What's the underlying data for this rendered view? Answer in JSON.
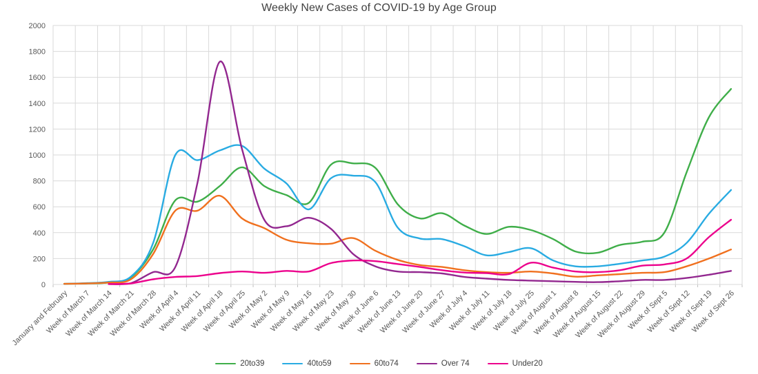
{
  "chart_data": {
    "type": "line",
    "title": "Weekly New Cases of COVID-19 by Age Group",
    "xlabel": "",
    "ylabel": "",
    "ylim": [
      0,
      2000
    ],
    "ytick_step": 200,
    "y_ticks": [
      "0",
      "200",
      "400",
      "600",
      "800",
      "1000",
      "1200",
      "1400",
      "1600",
      "1800",
      "2000"
    ],
    "grid": true,
    "smooth_lines": true,
    "legend_position": "bottom",
    "categories": [
      "January and February",
      "Week of March 7",
      "Week of March 14",
      "Week of March 21",
      "Week of March 28",
      "Week of April 4",
      "Week of April 11",
      "Week of April 18",
      "Week of April 25",
      "Week of May 2",
      "Week of May 9",
      "Week of May 16",
      "Week of May 23",
      "Week of May 30",
      "Week of June 6",
      "Week of June 13",
      "Week of June 20",
      "Week of June 27",
      "Week of July 4",
      "Week of July 11",
      "Week of July 18",
      "Week of July 25",
      "Week of August 1",
      "Week of August 8",
      "Week of August 15",
      "Week of August 22",
      "Week of August 29",
      "Week of Sept 5",
      "Week of Sept 12",
      "Week of Sept 19",
      "Week of Sept 26"
    ],
    "series": [
      {
        "name": "20to39",
        "color": "#3FAE49",
        "values": [
          5,
          8,
          15,
          55,
          270,
          650,
          640,
          760,
          905,
          760,
          690,
          630,
          925,
          935,
          900,
          620,
          510,
          550,
          455,
          390,
          445,
          420,
          350,
          255,
          245,
          305,
          330,
          400,
          865,
          1290,
          1510
        ]
      },
      {
        "name": "40to59",
        "color": "#29ABE2",
        "values": [
          5,
          10,
          20,
          60,
          320,
          1000,
          960,
          1035,
          1070,
          895,
          780,
          580,
          820,
          840,
          790,
          440,
          355,
          350,
          295,
          225,
          250,
          280,
          185,
          140,
          140,
          160,
          185,
          215,
          320,
          545,
          730
        ]
      },
      {
        "name": "60to74",
        "color": "#F0701E",
        "values": [
          5,
          8,
          15,
          40,
          235,
          570,
          570,
          685,
          510,
          435,
          345,
          318,
          315,
          358,
          260,
          190,
          150,
          135,
          110,
          95,
          90,
          100,
          85,
          60,
          70,
          80,
          90,
          95,
          140,
          200,
          270
        ]
      },
      {
        "name": "Over 74",
        "color": "#92278F",
        "values": [
          null,
          null,
          3,
          10,
          95,
          135,
          790,
          1720,
          1045,
          500,
          450,
          515,
          430,
          235,
          140,
          100,
          95,
          85,
          58,
          45,
          35,
          30,
          25,
          20,
          18,
          25,
          35,
          35,
          50,
          75,
          105
        ]
      },
      {
        "name": "Under20",
        "color": "#EC008C",
        "values": [
          null,
          null,
          3,
          8,
          40,
          58,
          65,
          88,
          100,
          90,
          105,
          100,
          165,
          185,
          180,
          158,
          135,
          110,
          92,
          88,
          80,
          168,
          130,
          100,
          95,
          110,
          145,
          155,
          200,
          365,
          500
        ]
      }
    ],
    "colors": {
      "title_text": "#404040",
      "axis_text": "#595959",
      "gridline": "#D9D9D9",
      "axis_line": "#BFBFBF",
      "background": "#FFFFFF"
    }
  }
}
